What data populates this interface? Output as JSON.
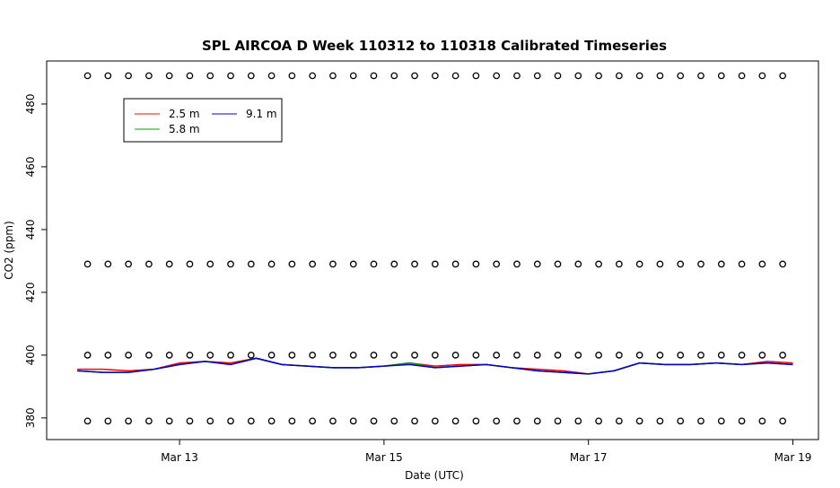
{
  "chart_data": {
    "type": "line",
    "title": "SPL AIRCOA D  Week 110312 to 110318  Calibrated Timeseries",
    "x_label": "Date (UTC)",
    "y_label": "CO2 (ppm)",
    "xlim": [
      11.7,
      19.25
    ],
    "ylim": [
      373.1,
      493.7
    ],
    "xticks": [
      {
        "value": 13,
        "label": "Mar 13"
      },
      {
        "value": 15,
        "label": "Mar 15"
      },
      {
        "value": 17,
        "label": "Mar 17"
      },
      {
        "value": 19,
        "label": "Mar 19"
      }
    ],
    "yticks": [
      380,
      400,
      420,
      440,
      460,
      480
    ],
    "grid": false,
    "legend": "topleft",
    "x": [
      12.0,
      12.25,
      12.5,
      12.75,
      13.0,
      13.25,
      13.5,
      13.75,
      14.0,
      14.25,
      14.5,
      14.75,
      15.0,
      15.25,
      15.5,
      15.75,
      16.0,
      16.25,
      16.5,
      16.75,
      17.0,
      17.25,
      17.5,
      17.75,
      18.0,
      18.25,
      18.5,
      18.75,
      19.0
    ],
    "series": [
      {
        "name": "2.5 m",
        "color": "#ff0000",
        "values": [
          395.5,
          395.5,
          395,
          395.5,
          397.5,
          398,
          397.5,
          399,
          397,
          396.5,
          396,
          396,
          396.5,
          397.5,
          396.5,
          397,
          397,
          396,
          395.5,
          395,
          394,
          395,
          397.5,
          397,
          397,
          397.5,
          397,
          398,
          397.5
        ]
      },
      {
        "name": "5.8 m",
        "color": "#00a000",
        "values": [
          395,
          394.5,
          394.5,
          395.5,
          397,
          398,
          397,
          399,
          397,
          396.5,
          396,
          396,
          396.5,
          397.5,
          396,
          396.5,
          397,
          396,
          395,
          394.5,
          394,
          395,
          397.5,
          397,
          397,
          397.5,
          397,
          397.5,
          397
        ]
      },
      {
        "name": "9.1 m",
        "color": "#0000cc",
        "values": [
          395,
          394.5,
          394.5,
          395.5,
          397,
          398,
          397,
          399,
          397,
          396.5,
          396,
          396,
          396.5,
          397,
          396,
          396.5,
          397,
          396,
          395,
          394.5,
          394,
          395,
          397.5,
          397,
          397,
          397.5,
          397,
          397.5,
          397
        ]
      }
    ],
    "points": {
      "levels": [
        489,
        429,
        400,
        379
      ],
      "x": [
        12.1,
        12.3,
        12.5,
        12.7,
        12.9,
        13.1,
        13.3,
        13.5,
        13.7,
        13.9,
        14.1,
        14.3,
        14.5,
        14.7,
        14.9,
        15.1,
        15.3,
        15.5,
        15.7,
        15.9,
        16.1,
        16.3,
        16.5,
        16.7,
        16.9,
        17.1,
        17.3,
        17.5,
        17.7,
        17.9,
        18.1,
        18.3,
        18.5,
        18.7,
        18.9
      ]
    }
  }
}
